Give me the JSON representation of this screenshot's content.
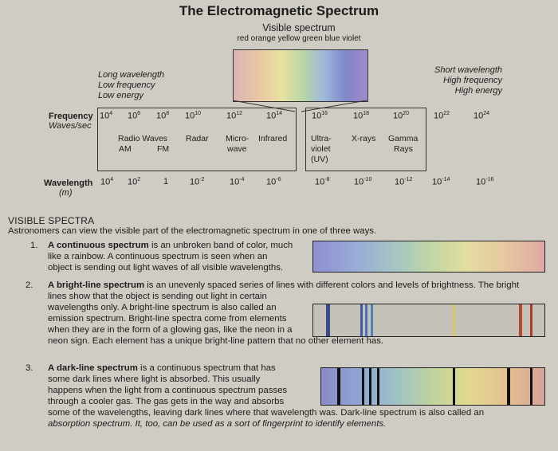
{
  "title": "The Electromagnetic Spectrum",
  "visible": {
    "title": "Visible spectrum",
    "colors": "red orange yellow green blue violet"
  },
  "left_labels": {
    "long_wavelength": "Long wavelength",
    "low_frequency": "Low frequency",
    "low_energy": "Low energy",
    "frequency": "Frequency",
    "waves_sec": "Waves/sec",
    "wavelength": "Wavelength",
    "m": "(m)"
  },
  "right_labels": {
    "short_wavelength": "Short wavelength",
    "high_frequency": "High frequency",
    "high_energy": "High energy"
  },
  "frequency_ticks": [
    {
      "base": "10",
      "exp": "4"
    },
    {
      "base": "10",
      "exp": "6"
    },
    {
      "base": "10",
      "exp": "8"
    },
    {
      "base": "10",
      "exp": "10"
    },
    {
      "base": "10",
      "exp": "12"
    },
    {
      "base": "10",
      "exp": "14"
    },
    {
      "base": "10",
      "exp": "16"
    },
    {
      "base": "10",
      "exp": "18"
    },
    {
      "base": "10",
      "exp": "20"
    },
    {
      "base": "10",
      "exp": "22"
    },
    {
      "base": "10",
      "exp": "24"
    }
  ],
  "wavelength_ticks": [
    {
      "base": "10",
      "exp": "4"
    },
    {
      "base": "10",
      "exp": "2"
    },
    {
      "base": "1",
      "exp": ""
    },
    {
      "base": "10",
      "exp": "-2"
    },
    {
      "base": "10",
      "exp": "-4"
    },
    {
      "base": "10",
      "exp": "-6"
    },
    {
      "base": "10",
      "exp": "-8"
    },
    {
      "base": "10",
      "exp": "-10"
    },
    {
      "base": "10",
      "exp": "-12"
    },
    {
      "base": "10",
      "exp": "-14"
    },
    {
      "base": "10",
      "exp": "-16"
    }
  ],
  "bands": {
    "radio_waves": "Radio Waves",
    "am": "AM",
    "fm": "FM",
    "radar": "Radar",
    "micro": "Micro-",
    "wave": "wave",
    "infrared": "Infrared",
    "ultra": "Ultra-",
    "violet": "violet",
    "uv": "(UV)",
    "xrays": "X-rays",
    "gamma": "Gamma",
    "rays": "Rays"
  },
  "section": {
    "heading": "VISIBLE SPECTRA",
    "intro": "Astronomers can view the visible part of the electromagnetic spectrum in one of three ways.",
    "items": [
      {
        "num": "1.",
        "bold": "A continuous spectrum",
        "rest": " is an unbroken band of color, much",
        "lines": [
          "like a rainbow.  A continuous spectrum is seen when an",
          "object is sending out light waves of all visible wavelengths."
        ]
      },
      {
        "num": "2.",
        "bold": "A bright-line spectrum",
        "rest": " is an unevenly spaced series of lines with different colors and levels of brightness. The bright",
        "lines": [
          "lines show that the object is sending out light in certain",
          "wavelengths only.  A bright-line spectrum is also called an",
          "emission spectrum.  Bright-line spectra come from elements",
          "when they are in the form of a glowing gas, like the neon in a",
          "neon sign.  Each element has a unique bright-line pattern that no other element has."
        ]
      },
      {
        "num": "3.",
        "bold": "A dark-line spectrum",
        "rest": " is a continuous spectrum that has",
        "lines": [
          "some dark lines where light is absorbed.  This usually",
          "happens when the light from a continuous spectrum passes",
          "through a cooler gas.  The gas gets in the way and absorbs",
          "some of the wavelengths, leaving dark lines where that wavelength was.  Dark-line spectrum is also called an",
          "absorption spectrum.  It, too, can be used as a sort of fingerprint to identify elements."
        ]
      }
    ]
  },
  "colors": {
    "background": "#cfccc4",
    "text": "#1c1c1c"
  }
}
